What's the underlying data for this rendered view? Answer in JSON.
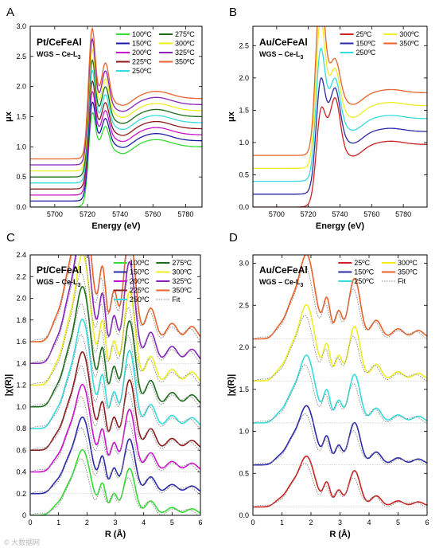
{
  "watermark": "© 大数据网",
  "chart_data": [
    {
      "panel": "A",
      "type": "line",
      "title": "Pt/CeFeAl",
      "subtitle": "WGS – Ce-L",
      "subtitle_sub": "3",
      "xlabel": "Energy (eV)",
      "ylabel": "μx",
      "xlim": [
        5685,
        5790
      ],
      "ylim": [
        0,
        3.0
      ],
      "xticks": [
        5700,
        5720,
        5740,
        5760,
        5780
      ],
      "yticks": [
        0.0,
        0.5,
        1.0,
        1.5,
        2.0,
        2.5,
        3.0
      ],
      "legend_columns": 2,
      "series": [
        {
          "name": "100ºC",
          "color": "#33dd33",
          "offset": 0.0,
          "style": "solid"
        },
        {
          "name": "150ºC",
          "color": "#1a1aa6",
          "offset": 0.1,
          "style": "solid"
        },
        {
          "name": "200ºC",
          "color": "#cc11cc",
          "offset": 0.2,
          "style": "solid"
        },
        {
          "name": "225ºC",
          "color": "#8b1a1a",
          "offset": 0.3,
          "style": "solid"
        },
        {
          "name": "250ºC",
          "color": "#33dddd",
          "offset": 0.4,
          "style": "solid"
        },
        {
          "name": "275ºC",
          "color": "#1a6b1a",
          "offset": 0.5,
          "style": "solid"
        },
        {
          "name": "300ºC",
          "color": "#eeee22",
          "offset": 0.6,
          "style": "solid"
        },
        {
          "name": "325ºC",
          "color": "#8822bb",
          "offset": 0.7,
          "style": "solid"
        },
        {
          "name": "350ºC",
          "color": "#e8622a",
          "offset": 0.8,
          "style": "solid"
        }
      ]
    },
    {
      "panel": "B",
      "type": "line",
      "title": "Au/CeFeAl",
      "subtitle": "WGS – Ce-L",
      "subtitle_sub": "3",
      "xlabel": "Energy (eV)",
      "ylabel": "μx",
      "xlim": [
        5685,
        5795
      ],
      "ylim": [
        0,
        2.8
      ],
      "xticks": [
        5700,
        5720,
        5740,
        5760,
        5780
      ],
      "yticks": [
        0.0,
        0.5,
        1.0,
        1.5,
        2.0,
        2.5
      ],
      "legend_columns": 2,
      "series": [
        {
          "name": "25ºC",
          "color": "#cc2222",
          "offset": 0.0,
          "style": "solid"
        },
        {
          "name": "150ºC",
          "color": "#2a2aa8",
          "offset": 0.2,
          "style": "solid"
        },
        {
          "name": "250ºC",
          "color": "#33dddd",
          "offset": 0.4,
          "style": "solid"
        },
        {
          "name": "300ºC",
          "color": "#eeee22",
          "offset": 0.6,
          "style": "solid"
        },
        {
          "name": "350ºC",
          "color": "#e8622a",
          "offset": 0.8,
          "style": "solid"
        }
      ]
    },
    {
      "panel": "C",
      "type": "line",
      "title": "Pt/CeFeAl",
      "subtitle": "WGS – Ce-L",
      "subtitle_sub": "3",
      "xlabel": "R (Å)",
      "ylabel": "|χ(R)|",
      "xlim": [
        0,
        6
      ],
      "ylim": [
        0,
        2.4
      ],
      "xticks": [
        0,
        1,
        2,
        3,
        4,
        5,
        6
      ],
      "yticks": [
        0,
        0.2,
        0.4,
        0.6,
        0.8,
        1.0,
        1.2,
        1.4,
        1.6,
        1.8,
        2.0,
        2.2,
        2.4
      ],
      "legend_columns": 2,
      "series": [
        {
          "name": "100ºC",
          "color": "#33dd33",
          "offset": 0.0,
          "style": "solid"
        },
        {
          "name": "150ºC",
          "color": "#2a2aa8",
          "offset": 0.2,
          "style": "solid"
        },
        {
          "name": "200ºC",
          "color": "#cc11cc",
          "offset": 0.4,
          "style": "solid"
        },
        {
          "name": "225ºC",
          "color": "#8b1a1a",
          "offset": 0.6,
          "style": "solid"
        },
        {
          "name": "250ºC",
          "color": "#33dddd",
          "offset": 0.8,
          "style": "solid"
        },
        {
          "name": "275ºC",
          "color": "#1a6b1a",
          "offset": 1.0,
          "style": "solid"
        },
        {
          "name": "300ºC",
          "color": "#eeee22",
          "offset": 1.2,
          "style": "solid"
        },
        {
          "name": "325ºC",
          "color": "#8822bb",
          "offset": 1.4,
          "style": "solid"
        },
        {
          "name": "350ºC",
          "color": "#e8622a",
          "offset": 1.6,
          "style": "solid"
        },
        {
          "name": "Fit",
          "color": "#888888",
          "style": "dotted"
        }
      ]
    },
    {
      "panel": "D",
      "type": "line",
      "title": "Au/CeFeAl",
      "subtitle": "WGS – Ce-L",
      "subtitle_sub": "3",
      "xlabel": "R (Å)",
      "ylabel": "|χ(R)|",
      "xlim": [
        0,
        6
      ],
      "ylim": [
        0,
        3.1
      ],
      "xticks": [
        0,
        1,
        2,
        3,
        4,
        5,
        6
      ],
      "yticks": [
        0.0,
        0.5,
        1.0,
        1.5,
        2.0,
        2.5,
        3.0
      ],
      "legend_columns": 2,
      "series": [
        {
          "name": "25ºC",
          "color": "#cc2222",
          "offset": 0.1,
          "style": "solid"
        },
        {
          "name": "150ºC",
          "color": "#2a2aa8",
          "offset": 0.6,
          "style": "solid"
        },
        {
          "name": "250ºC",
          "color": "#33dddd",
          "offset": 1.1,
          "style": "solid"
        },
        {
          "name": "300ºC",
          "color": "#eeee22",
          "offset": 1.6,
          "style": "solid"
        },
        {
          "name": "350ºC",
          "color": "#e8622a",
          "offset": 2.1,
          "style": "solid"
        },
        {
          "name": "Fit",
          "color": "#888888",
          "style": "dotted"
        }
      ]
    }
  ]
}
